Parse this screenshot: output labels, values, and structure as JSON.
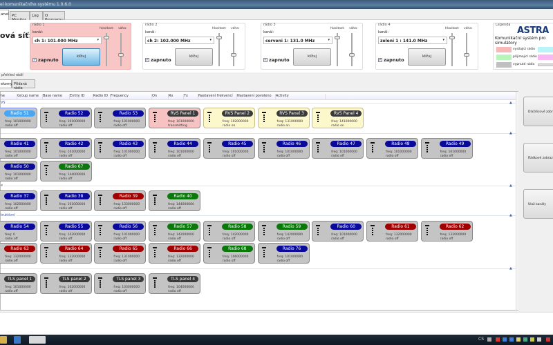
{
  "window": {
    "title": "el komunikačního systému 1.0.6.0"
  },
  "tabs": [
    {
      "label": "anel",
      "active": true
    },
    {
      "label": "PC Monitor"
    },
    {
      "label": "Log"
    },
    {
      "label": "O Programu"
    }
  ],
  "network_label": "ová síť:",
  "radios": [
    {
      "title": "rádio 1",
      "kanal_label": "kanál:",
      "channel": "ch 1: 101.000 MHz",
      "enabled_label": "zapnuto",
      "enabled": true,
      "key_button": "klíčuj",
      "volume_label": "hlasitost:",
      "weight_label": "váha:",
      "state": "transmitting",
      "volume": 0.95,
      "weight": 0.6
    },
    {
      "title": "rádio 2",
      "kanal_label": "kanál:",
      "channel": "ch 2: 102.000 MHz",
      "enabled_label": "zapnuto",
      "enabled": true,
      "key_button": "klíčuj",
      "volume_label": "hlasitost:",
      "weight_label": "váha:",
      "state": "idle",
      "volume": 0.95,
      "weight": 0.6
    },
    {
      "title": "rádio 3",
      "kanal_label": "kanál:",
      "channel": "cerveni 1: 131.0 MHz",
      "enabled_label": "zapnuto",
      "enabled": true,
      "key_button": "klíčuj",
      "volume_label": "hlasitost:",
      "weight_label": "váha:",
      "state": "idle",
      "volume": 0.95,
      "weight": 0.6
    },
    {
      "title": "rádio 4",
      "kanal_label": "kanál:",
      "channel": "zeleni 1 : 141.0 MHz",
      "enabled_label": "zapnuto",
      "enabled": true,
      "key_button": "klíčuj",
      "volume_label": "hlasitost:",
      "weight_label": "váha:",
      "state": "idle",
      "volume": 0.95,
      "weight": 0.6
    }
  ],
  "legend": {
    "title": "Legenda",
    "logo": "ASTRA",
    "subtitle": "Komunikační systém pro simulátory",
    "items": [
      {
        "label": "vysílající rádio",
        "color": "#f9b8b8"
      },
      {
        "label": "přijímající rádio",
        "color": "#b8f5b8"
      },
      {
        "label": "vypnuté rádio",
        "color": "#c0c0c0"
      }
    ],
    "extra_colors": [
      "#b8f4f8",
      "#f8b8f4"
    ]
  },
  "overview": {
    "label": "přehled rádií",
    "subtabs": [
      "ekomy",
      "Přidaná rádia"
    ],
    "columns": [
      "me",
      "Group name",
      "Base name",
      "Entity ID",
      "Radio ID",
      "Frequency",
      "On",
      "Rx",
      "Tx",
      "Nastavení frekvencí",
      "Nastavení povoleno",
      "Activity"
    ]
  },
  "colors": {
    "blue": "#0a0a9a",
    "red": "#a00000",
    "green": "#0a780a",
    "dark": "#3a3a3a",
    "light": "#4aa6f0"
  },
  "groups": [
    {
      "label": "VS",
      "rows": [
        [
          {
            "name": "Radio 51",
            "c": "light",
            "freq": "freq: 101000000",
            "status": "radio off",
            "bg": "sel"
          },
          {
            "name": "Radio 52",
            "c": "blue",
            "freq": "freq: 101000000",
            "status": "radio off"
          },
          {
            "name": "Radio 53",
            "c": "blue",
            "freq": "freq: 101000000",
            "status": "radio off"
          },
          {
            "name": "RVS Panel 1",
            "c": "dark",
            "freq": "freq: 101000000",
            "status": "transmitting",
            "bg": "pink"
          },
          {
            "name": "RVS Panel 2",
            "c": "dark",
            "freq": "freq: 102000000",
            "status": "radio on",
            "bg": "yellow"
          },
          {
            "name": "RVS Panel 3",
            "c": "dark",
            "freq": "freq: 131000000",
            "status": "radio on",
            "bg": "yellow"
          },
          {
            "name": "RVS Panel 4",
            "c": "dark",
            "freq": "freq: 141000000",
            "status": "radio on",
            "bg": "yellow"
          }
        ]
      ]
    },
    {
      "label": "",
      "rows": [
        [
          {
            "name": "Radio 41",
            "c": "blue",
            "freq": "freq: 101000000",
            "status": "radio off"
          },
          {
            "name": "Radio 42",
            "c": "blue",
            "freq": "freq: 101000000",
            "status": "radio off"
          },
          {
            "name": "Radio 43",
            "c": "blue",
            "freq": "freq: 101000000",
            "status": "radio off"
          },
          {
            "name": "Radio 44",
            "c": "blue",
            "freq": "freq: 101000000",
            "status": "radio off"
          },
          {
            "name": "Radio 45",
            "c": "blue",
            "freq": "freq: 101000000",
            "status": "radio off"
          },
          {
            "name": "Radio 46",
            "c": "blue",
            "freq": "freq: 101000000",
            "status": "radio off"
          },
          {
            "name": "Radio 47",
            "c": "blue",
            "freq": "freq: 101000000",
            "status": "radio off"
          },
          {
            "name": "Radio 48",
            "c": "blue",
            "freq": "freq: 101000000",
            "status": "radio off"
          },
          {
            "name": "Radio 49",
            "c": "blue",
            "freq": "freq: 101000000",
            "status": "radio off"
          }
        ],
        [
          {
            "name": "Radio 50",
            "c": "blue",
            "freq": "freq: 101000000",
            "status": "radio off"
          },
          {
            "name": "Radio 67",
            "c": "green",
            "freq": "freq: 144000000",
            "status": "radio off"
          }
        ]
      ]
    },
    {
      "label": "e",
      "rows": [
        [
          {
            "name": "Radio 37",
            "c": "blue",
            "freq": "freq: 102000000",
            "status": "radio off"
          },
          {
            "name": "Radio 38",
            "c": "blue",
            "freq": "freq: 101000000",
            "status": "radio off"
          },
          {
            "name": "Radio 39",
            "c": "red",
            "freq": "freq: 133000000",
            "status": "radio off"
          },
          {
            "name": "Radio 40",
            "c": "green",
            "freq": "freq: 144000000",
            "status": "radio off"
          }
        ]
      ]
    },
    {
      "label": "truktivní",
      "rows": [
        [
          {
            "name": "Radio 54",
            "c": "blue",
            "freq": "freq: 0",
            "status": "radio off"
          },
          {
            "name": "Radio 55",
            "c": "blue",
            "freq": "freq: 102000000",
            "status": "radio off"
          },
          {
            "name": "Radio 56",
            "c": "blue",
            "freq": "freq: 101000000",
            "status": "radio off"
          },
          {
            "name": "Radio 57",
            "c": "green",
            "freq": "freq: 142000000",
            "status": "radio off"
          },
          {
            "name": "Radio 58",
            "c": "green",
            "freq": "freq: 142000000",
            "status": "radio off"
          },
          {
            "name": "Radio 59",
            "c": "green",
            "freq": "freq: 142000000",
            "status": "radio off"
          },
          {
            "name": "Radio 60",
            "c": "blue",
            "freq": "freq: 101000000",
            "status": "radio off"
          },
          {
            "name": "Radio 61",
            "c": "red",
            "freq": "freq: 132000000",
            "status": "radio off"
          },
          {
            "name": "Radio 62",
            "c": "red",
            "freq": "freq: 132000000",
            "status": "radio off"
          }
        ],
        [
          {
            "name": "Radio 63",
            "c": "red",
            "freq": "freq: 132000000",
            "status": "radio off"
          },
          {
            "name": "Radio 64",
            "c": "red",
            "freq": "freq: 132000000",
            "status": "radio off"
          },
          {
            "name": "Radio 65",
            "c": "red",
            "freq": "freq: 131000000",
            "status": "radio off"
          },
          {
            "name": "Radio 66",
            "c": "red",
            "freq": "freq: 132000000",
            "status": "radio off"
          },
          {
            "name": "Radio 68",
            "c": "green",
            "freq": "freq: 106000000",
            "status": "radio off"
          },
          {
            "name": "Radio 76",
            "c": "blue",
            "freq": "freq: 101000000",
            "status": "radio off"
          }
        ]
      ]
    },
    {
      "label": "",
      "rows": [
        [
          {
            "name": "TLS panel 1",
            "c": "dark",
            "freq": "freq: 101000000",
            "status": "radio off"
          },
          {
            "name": "TLS panel 2",
            "c": "dark",
            "freq": "freq: 102000000",
            "status": "radio off"
          },
          {
            "name": "TLS panel 3",
            "c": "dark",
            "freq": "freq: 103000000",
            "status": "radio off"
          },
          {
            "name": "TLS panel 4",
            "c": "dark",
            "freq": "freq: 104000000",
            "status": "radio off"
          }
        ]
      ]
    }
  ],
  "side_buttons": [
    "Dlaždicové zobrazení",
    "Řádkové zobrazení",
    "Ulož kanály"
  ],
  "taskbar": {
    "tray_text": "CS"
  }
}
